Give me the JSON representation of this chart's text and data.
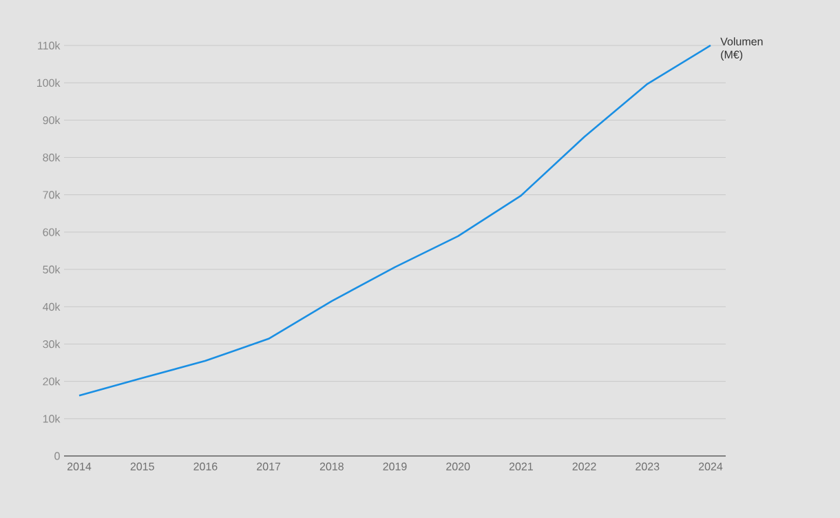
{
  "chart_data": {
    "type": "line",
    "categories": [
      "2014",
      "2015",
      "2016",
      "2017",
      "2018",
      "2019",
      "2020",
      "2021",
      "2022",
      "2023",
      "2024"
    ],
    "series": [
      {
        "name": "Volumen (M€)",
        "color": "#1a8fe3",
        "values": [
          16200,
          20900,
          25500,
          31400,
          41500,
          50600,
          58900,
          69800,
          85500,
          99700,
          110000
        ]
      }
    ],
    "ylim": [
      0,
      110000
    ],
    "yticks": [
      0,
      {
        "value": 10000,
        "label": "10k"
      },
      {
        "value": 20000,
        "label": "20k"
      },
      {
        "value": 30000,
        "label": "30k"
      },
      {
        "value": 40000,
        "label": "40k"
      },
      {
        "value": 50000,
        "label": "50k"
      },
      {
        "value": 60000,
        "label": "60k"
      },
      {
        "value": 70000,
        "label": "70k"
      },
      {
        "value": 80000,
        "label": "80k"
      },
      {
        "value": 90000,
        "label": "90k"
      },
      {
        "value": 100000,
        "label": "100k"
      },
      {
        "value": 110000,
        "label": "110k"
      }
    ],
    "grid": "y",
    "legend": false,
    "marker": "none",
    "line_style": "solid"
  }
}
